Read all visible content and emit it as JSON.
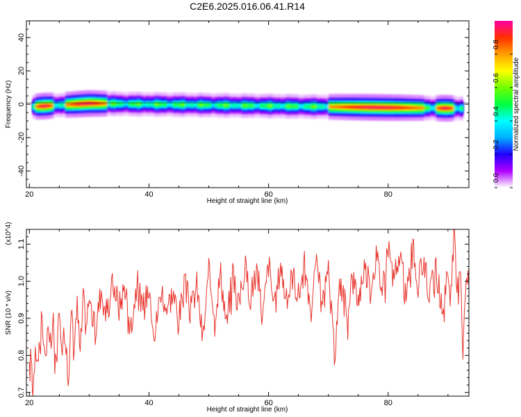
{
  "title": "C2E6.2025.016.06.41.R14",
  "chart_data": [
    {
      "type": "heatmap",
      "xlabel": "Height of straight line (km)",
      "ylabel": "Frequency (Hz)",
      "xlim": [
        19.5,
        93.5
      ],
      "ylim": [
        -50,
        50
      ],
      "xticks": [
        20,
        40,
        60,
        80
      ],
      "yticks": [
        -40,
        -20,
        0,
        20,
        40
      ],
      "zero_line": 0,
      "band": {
        "x_start": 20.5,
        "x_end": 92.5,
        "center_frequency": [
          [
            20.5,
            -1.5
          ],
          [
            30,
            0.5
          ],
          [
            50,
            -0.5
          ],
          [
            70,
            -1.5
          ],
          [
            80,
            -2
          ],
          [
            92.5,
            -2.5
          ]
        ],
        "halfwidth_hz": 3.5,
        "peak_regions": [
          [
            21,
            24
          ],
          [
            26,
            33
          ],
          [
            70,
            86
          ],
          [
            88,
            91
          ]
        ]
      },
      "colorbar": {
        "label": "Normalized spectral amplitude",
        "range": [
          0,
          1
        ],
        "ticks": [
          "0.0",
          "0.2",
          "0.4",
          "0.6",
          "0.8"
        ],
        "colormap": [
          "#ffffff",
          "#b000ff",
          "#2000ff",
          "#00b0ff",
          "#00ffff",
          "#00ff40",
          "#70ff00",
          "#ffff00",
          "#ffa000",
          "#ff3000",
          "#ff00a0"
        ]
      }
    },
    {
      "type": "line",
      "xlabel": "Height of straight line (km)",
      "ylabel": "SNR (10 * v/v)",
      "y_multiplier": "(x10^4)",
      "xlim": [
        19.5,
        93.5
      ],
      "ylim": [
        0.69,
        1.14
      ],
      "xticks": [
        20,
        40,
        60,
        80
      ],
      "yticks": [
        "0.7",
        "0.8",
        "0.9",
        "1.0",
        "1.1"
      ],
      "series": [
        {
          "color": "#e8332b",
          "x": [
            20.0,
            20.3,
            20.6,
            21.0,
            21.5,
            22.0,
            22.5,
            23.0,
            23.5,
            24.0,
            24.5,
            25.0,
            25.5,
            26.0,
            26.5,
            27.0,
            27.5,
            28.0,
            28.5,
            29.0,
            29.5,
            30.0,
            31.0,
            32.0,
            33.0,
            34.0,
            35.0,
            36.0,
            37.0,
            38.0,
            39.0,
            40.0,
            41.0,
            42.0,
            43.0,
            44.0,
            45.0,
            46.0,
            47.0,
            48.0,
            49.0,
            50.0,
            51.0,
            52.0,
            53.0,
            54.0,
            55.0,
            56.0,
            57.0,
            58.0,
            59.0,
            60.0,
            61.0,
            62.0,
            63.0,
            64.0,
            65.0,
            66.0,
            67.0,
            68.0,
            69.0,
            70.0,
            71.0,
            72.0,
            73.0,
            74.0,
            75.0,
            76.0,
            77.0,
            78.0,
            79.0,
            80.0,
            81.0,
            82.0,
            83.0,
            84.0,
            85.0,
            86.0,
            87.0,
            88.0,
            89.0,
            90.0,
            90.5,
            91.0,
            91.5,
            92.0,
            92.5,
            93.0,
            93.5
          ],
          "y": [
            0.75,
            0.8,
            0.7,
            0.84,
            0.78,
            0.93,
            0.8,
            0.85,
            0.82,
            0.88,
            0.79,
            0.9,
            0.84,
            0.86,
            0.74,
            0.9,
            0.86,
            0.93,
            0.8,
            0.95,
            0.88,
            0.96,
            0.86,
            0.98,
            0.9,
            1.0,
            0.93,
            0.99,
            0.88,
            1.0,
            0.92,
            0.99,
            0.86,
            0.98,
            0.93,
            0.97,
            0.9,
            0.99,
            0.92,
            0.99,
            0.84,
            1.02,
            0.92,
            1.02,
            0.88,
            1.03,
            0.93,
            1.04,
            0.96,
            1.04,
            0.9,
            1.05,
            0.92,
            1.05,
            0.94,
            1.02,
            0.96,
            1.04,
            0.9,
            1.04,
            0.93,
            1.02,
            0.8,
            1.0,
            0.92,
            1.01,
            0.95,
            1.04,
            0.98,
            1.07,
            0.98,
            1.1,
            1.0,
            1.08,
            0.94,
            1.1,
            0.99,
            1.06,
            0.96,
            1.04,
            0.92,
            1.03,
            0.95,
            1.14,
            0.96,
            1.05,
            0.82,
            1.03,
            0.98
          ]
        }
      ]
    }
  ]
}
